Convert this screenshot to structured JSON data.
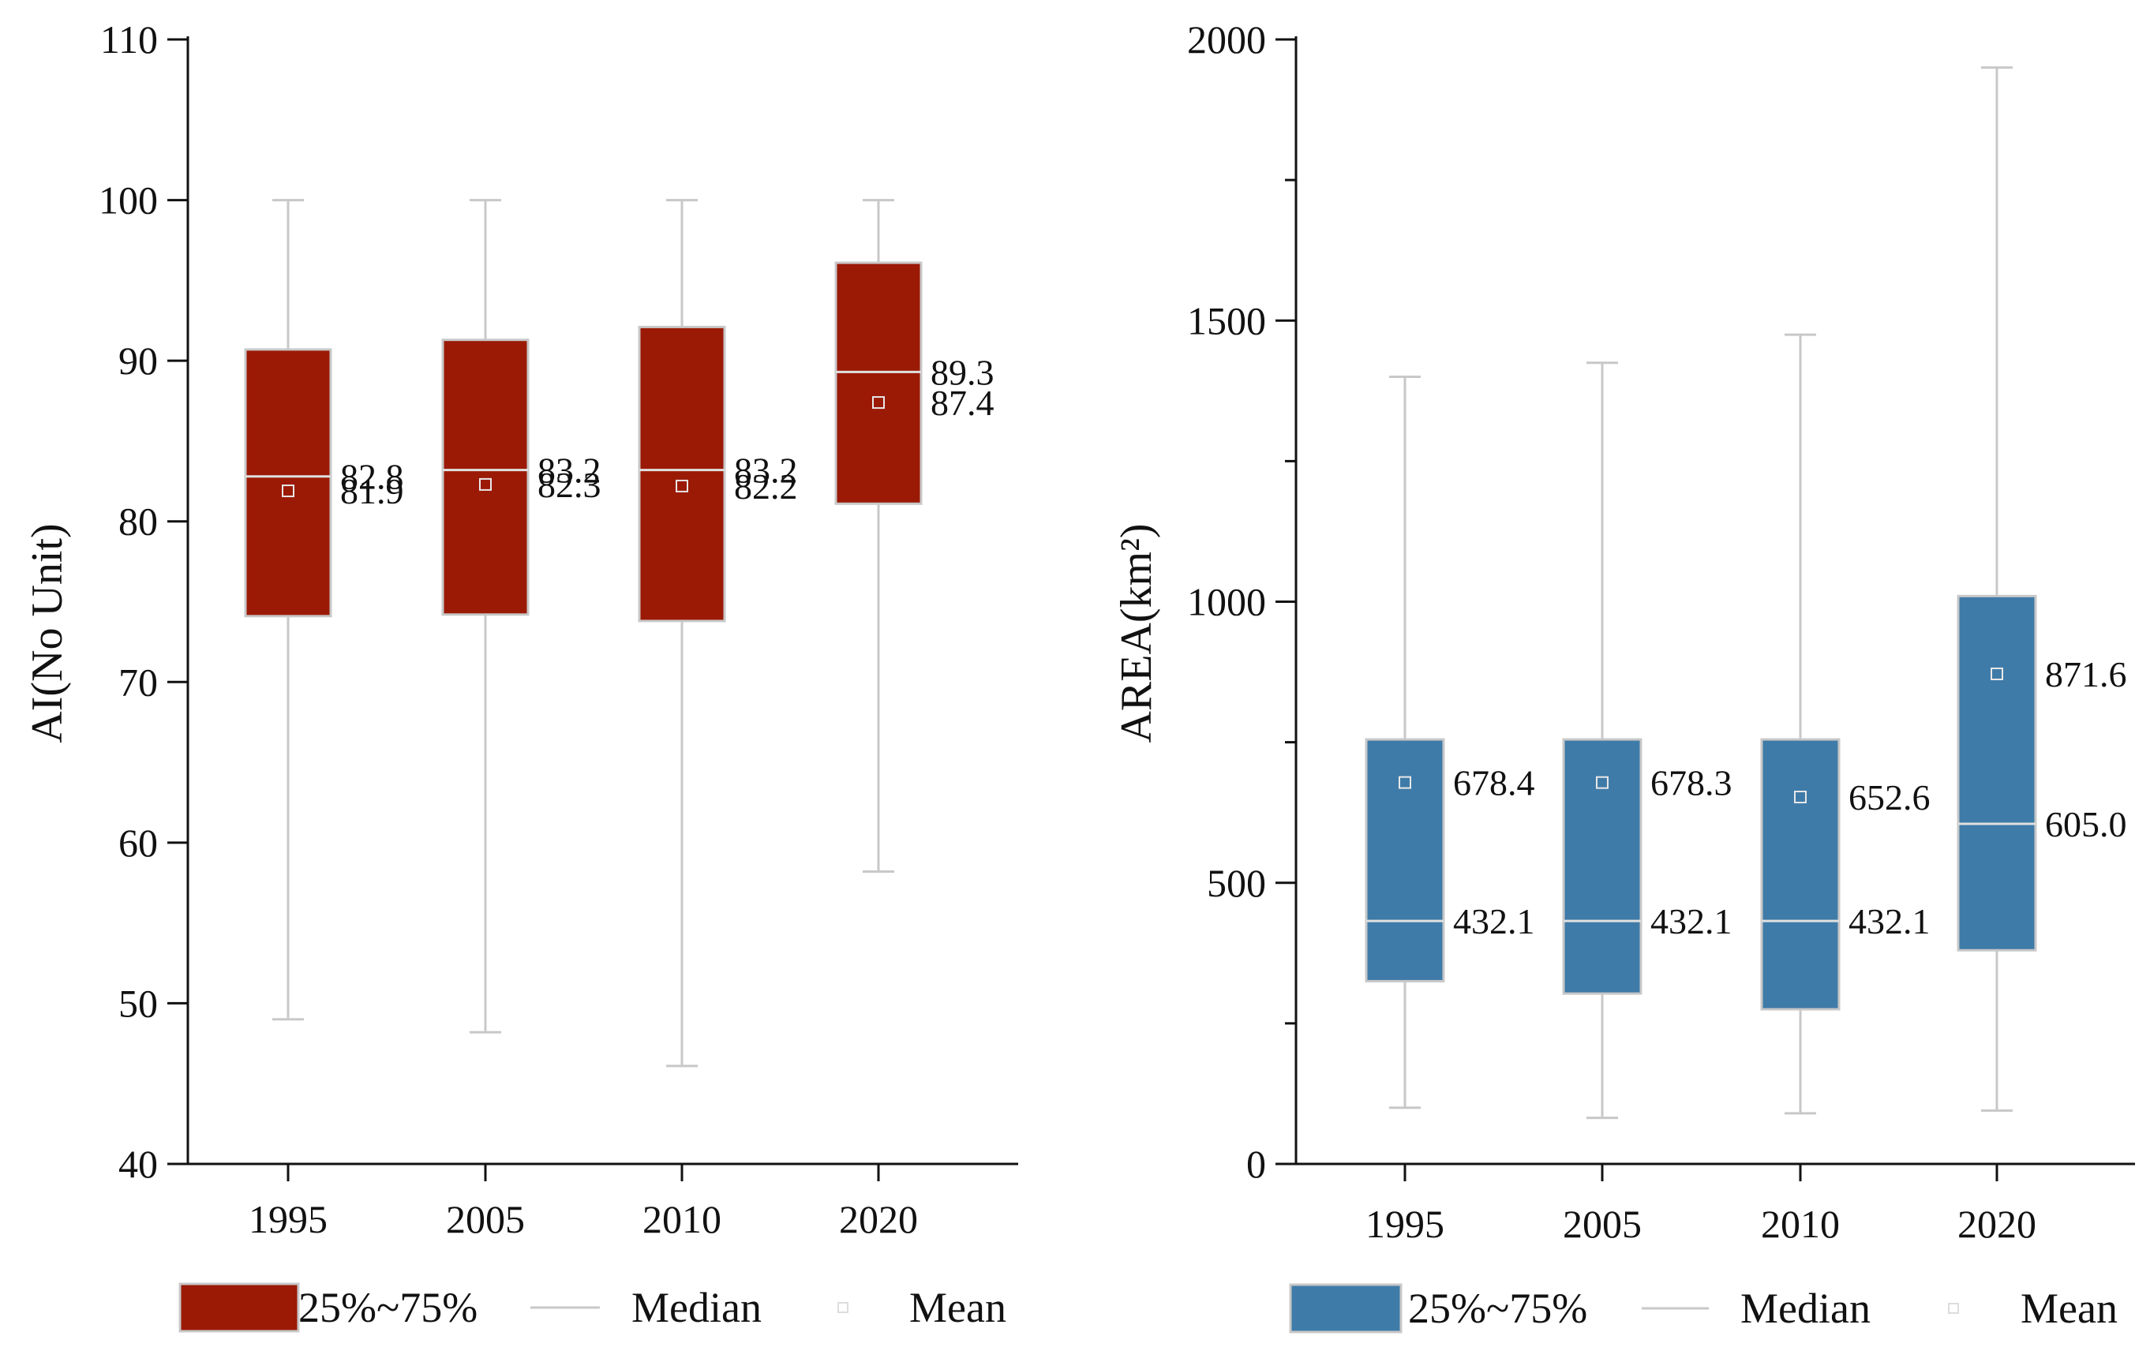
{
  "chart_data": [
    {
      "type": "box",
      "ylabel": "AI(No Unit)",
      "xlabel": "",
      "categories": [
        "1995",
        "2005",
        "2010",
        "2020"
      ],
      "ylim": [
        40,
        110
      ],
      "yticks": [
        40,
        50,
        60,
        70,
        80,
        90,
        100,
        110
      ],
      "box_color": "#9b1a06",
      "boxes": [
        {
          "year": "1995",
          "whisker_low": 49,
          "q1": 74.1,
          "median": 82.8,
          "q3": 90.7,
          "whisker_high": 100,
          "mean": 81.9,
          "median_label": "82.8",
          "mean_label": "81.9"
        },
        {
          "year": "2005",
          "whisker_low": 48.2,
          "q1": 74.2,
          "median": 83.2,
          "q3": 91.3,
          "whisker_high": 100,
          "mean": 82.3,
          "median_label": "83.2",
          "mean_label": "82.3"
        },
        {
          "year": "2010",
          "whisker_low": 46.1,
          "q1": 73.8,
          "median": 83.2,
          "q3": 92.1,
          "whisker_high": 100,
          "mean": 82.2,
          "median_label": "83.2",
          "mean_label": "82.2"
        },
        {
          "year": "2020",
          "whisker_low": 58.2,
          "q1": 81.1,
          "median": 89.3,
          "q3": 96.1,
          "whisker_high": 100,
          "mean": 87.4,
          "median_label": "89.3",
          "mean_label": "87.4"
        }
      ],
      "legend": {
        "box_label": "25%~75%",
        "median_label": "Median",
        "mean_label": "Mean"
      }
    },
    {
      "type": "box",
      "ylabel": "AREA(km²)",
      "xlabel": "",
      "categories": [
        "1995",
        "2005",
        "2010",
        "2020"
      ],
      "ylim": [
        0,
        2000
      ],
      "yticks": [
        0,
        500,
        1000,
        1500,
        2000
      ],
      "minor_step": 250,
      "box_color": "#3f7ba8",
      "boxes": [
        {
          "year": "1995",
          "whisker_low": 100,
          "q1": 325,
          "median": 432.1,
          "q3": 755,
          "whisker_high": 1400,
          "mean": 678.4,
          "median_label": "432.1",
          "mean_label": "678.4"
        },
        {
          "year": "2005",
          "whisker_low": 82,
          "q1": 303,
          "median": 432.1,
          "q3": 755,
          "whisker_high": 1425,
          "mean": 678.3,
          "median_label": "432.1",
          "mean_label": "678.3"
        },
        {
          "year": "2010",
          "whisker_low": 90,
          "q1": 275,
          "median": 432.1,
          "q3": 755,
          "whisker_high": 1475,
          "mean": 652.6,
          "median_label": "432.1",
          "mean_label": "652.6"
        },
        {
          "year": "2020",
          "whisker_low": 95,
          "q1": 380,
          "median": 605.0,
          "q3": 1010,
          "whisker_high": 1950,
          "mean": 871.6,
          "median_label": "605.0",
          "mean_label": "871.6"
        }
      ],
      "legend": {
        "box_label": "25%~75%",
        "median_label": "Median",
        "mean_label": "Mean"
      }
    }
  ]
}
